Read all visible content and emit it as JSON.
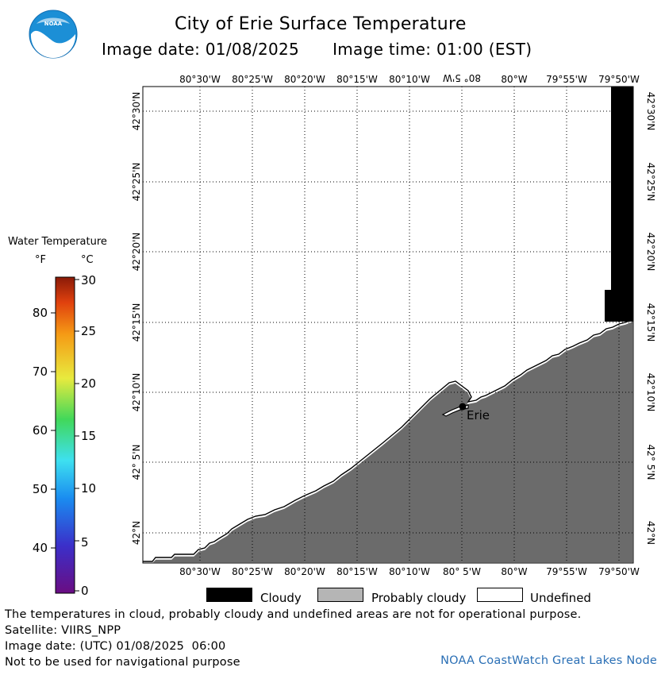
{
  "header": {
    "title": "City of Erie Surface Temperature",
    "image_date": "Image date: 01/08/2025",
    "image_time": "Image time: 01:00 (EST)",
    "logo_text": "NOAA"
  },
  "map": {
    "longitude_labels": [
      "80°30'W",
      "80°25'W",
      "80°20'W",
      "80°15'W",
      "80°10'W",
      "80° 5'W",
      "80°W",
      "79°55'W",
      "79°50'W"
    ],
    "latitude_labels": [
      "42°30'N",
      "42°25'N",
      "42°20'N",
      "42°15'N",
      "42°10'N",
      "42° 5'N",
      "42°N"
    ],
    "city_label": "Erie",
    "colors": {
      "land": "#6b6b6b",
      "cloud": "#000000",
      "water_undefined": "#ffffff",
      "grid": "#000000"
    }
  },
  "legend": {
    "title": "Water Temperature",
    "unit_f": "°F",
    "unit_c": "°C",
    "f_ticks": [
      "80",
      "70",
      "60",
      "50",
      "40"
    ],
    "c_ticks": [
      "30",
      "25",
      "20",
      "15",
      "10",
      "5",
      "0"
    ],
    "categories": [
      {
        "label": "Cloudy",
        "color": "#000000"
      },
      {
        "label": "Probably cloudy",
        "color": "#b5b5b5"
      },
      {
        "label": "Undefined",
        "color": "#ffffff"
      }
    ]
  },
  "footer": {
    "disclaimer": "The temperatures in cloud, probably cloudy and undefined areas are not for operational purpose.",
    "satellite": "Satellite: VIIRS_NPP",
    "utc_date": "Image date: (UTC) 01/08/2025  06:00",
    "navigation": "Not to be used for navigational purpose",
    "credit": "NOAA CoastWatch Great Lakes Node"
  }
}
